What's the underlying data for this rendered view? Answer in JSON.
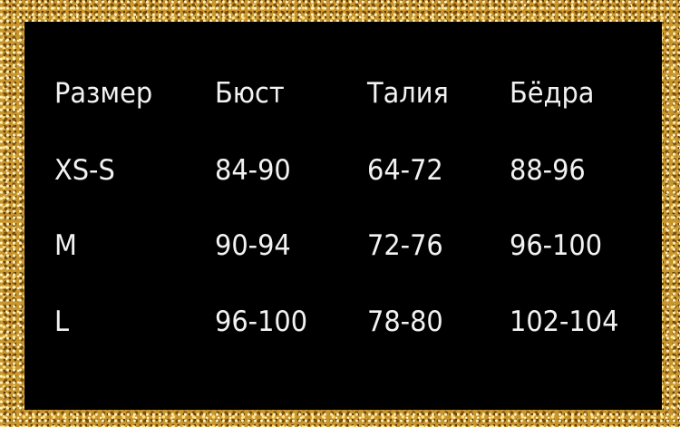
{
  "headers": [
    "Размер",
    "Бюст",
    "Талия",
    "Бёдра"
  ],
  "rows": [
    [
      "XS-S",
      "84-90",
      "64-72",
      "88-96"
    ],
    [
      "M",
      "90-94",
      "72-76",
      "96-100"
    ],
    [
      "L",
      "96-100",
      "78-80",
      "102-104"
    ]
  ],
  "colors": {
    "background": "#000000",
    "text": "#f2f2f2",
    "border": "#c9962e"
  }
}
